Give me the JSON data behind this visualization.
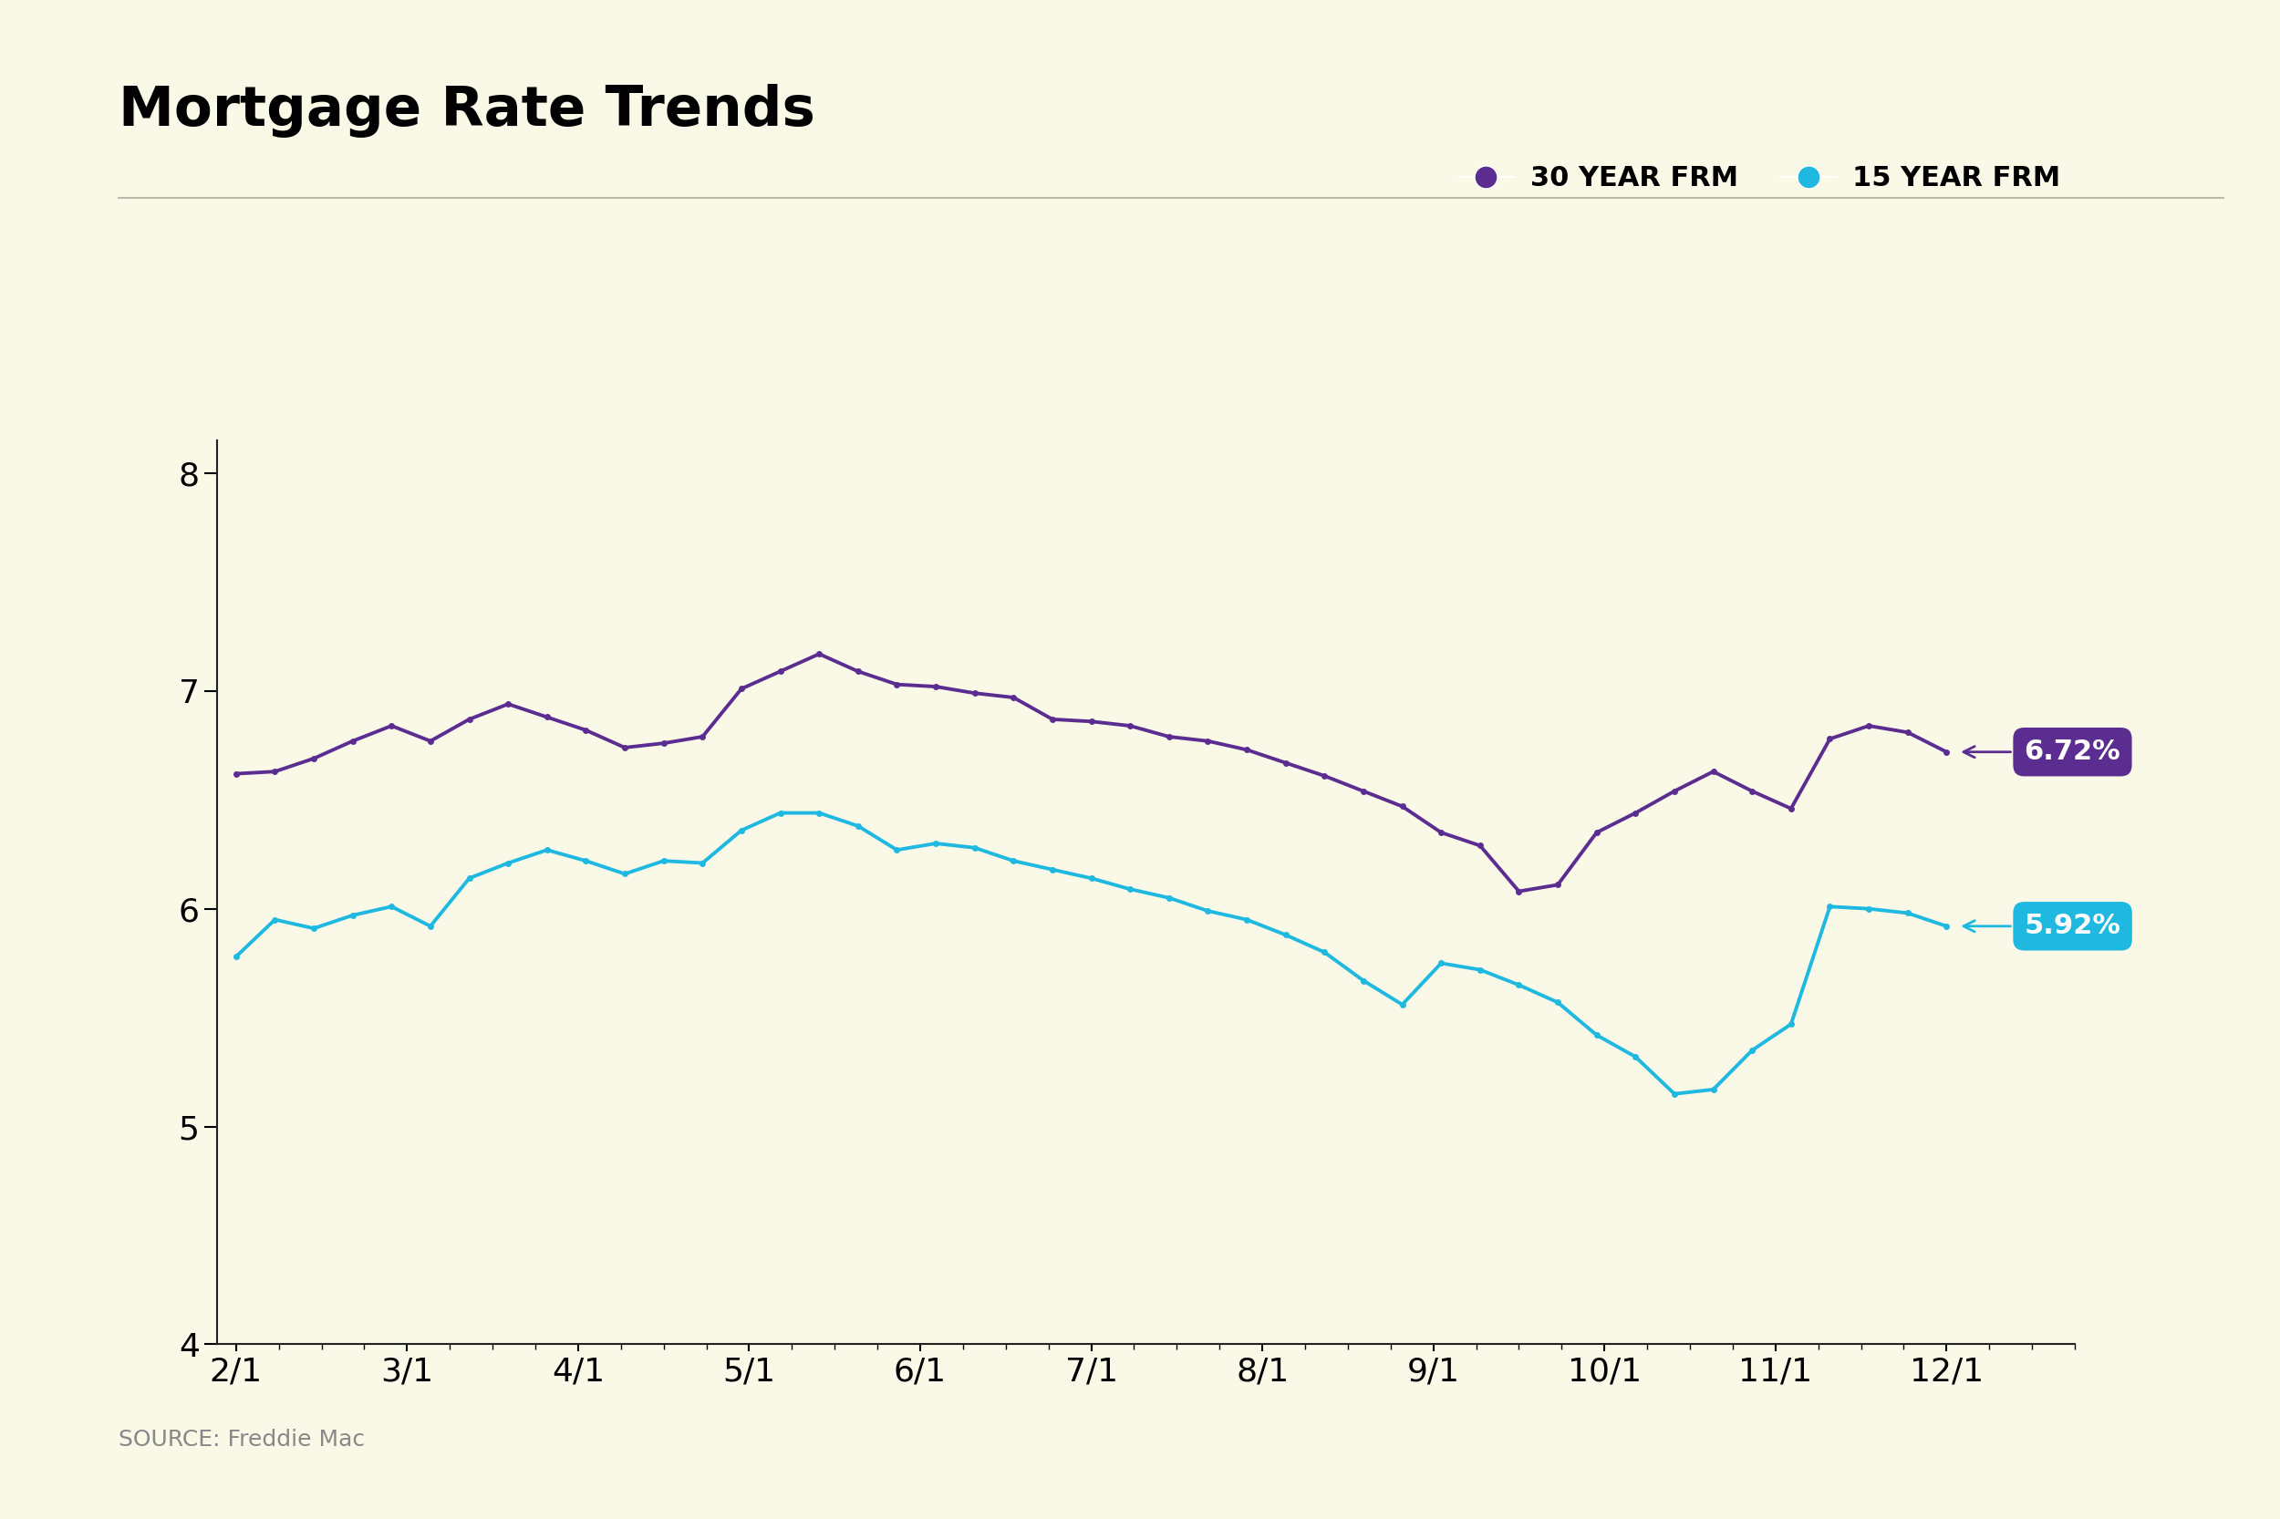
{
  "title": "Mortgage Rate Trends",
  "background_color": "#faf9e8",
  "title_fontsize": 44,
  "source_text": "SOURCE: Freddie Mac",
  "source_fontsize": 18,
  "ylim": [
    4,
    8.15
  ],
  "yticks": [
    4,
    5,
    6,
    7,
    8
  ],
  "xlabel_dates": [
    "2/1",
    "3/1",
    "4/1",
    "5/1",
    "6/1",
    "7/1",
    "8/1",
    "9/1",
    "10/1",
    "11/1",
    "12/1"
  ],
  "legend_30yr_label": "30 YEAR FRM",
  "legend_15yr_label": "15 YEAR FRM",
  "color_30yr": "#5c2d91",
  "color_15yr": "#1eb8e0",
  "label_30yr_value": "6.72%",
  "label_15yr_value": "5.92%",
  "label_30yr_bg": "#5c2d91",
  "label_15yr_bg": "#1eb8e0",
  "rate_30yr": [
    6.62,
    6.63,
    6.69,
    6.77,
    6.84,
    6.77,
    6.87,
    6.94,
    6.88,
    6.82,
    6.74,
    6.76,
    6.79,
    7.01,
    7.09,
    7.17,
    7.09,
    7.03,
    7.02,
    6.99,
    6.97,
    6.87,
    6.86,
    6.84,
    6.79,
    6.77,
    6.73,
    6.67,
    6.61,
    6.54,
    6.47,
    6.35,
    6.29,
    6.08,
    6.11,
    6.35,
    6.44,
    6.54,
    6.63,
    6.54,
    6.46,
    6.78,
    6.84,
    6.81,
    6.72
  ],
  "rate_15yr": [
    5.78,
    5.95,
    5.91,
    5.97,
    6.01,
    5.92,
    6.14,
    6.21,
    6.27,
    6.22,
    6.16,
    6.22,
    6.21,
    6.36,
    6.44,
    6.44,
    6.38,
    6.27,
    6.3,
    6.28,
    6.22,
    6.18,
    6.14,
    6.09,
    6.05,
    5.99,
    5.95,
    5.88,
    5.8,
    5.67,
    5.56,
    5.75,
    5.72,
    5.65,
    5.57,
    5.42,
    5.32,
    5.15,
    5.17,
    5.35,
    5.47,
    6.01,
    6.0,
    5.98,
    5.92
  ],
  "n_minor_xticks": 4,
  "line_width": 2.8,
  "marker_size": 5
}
